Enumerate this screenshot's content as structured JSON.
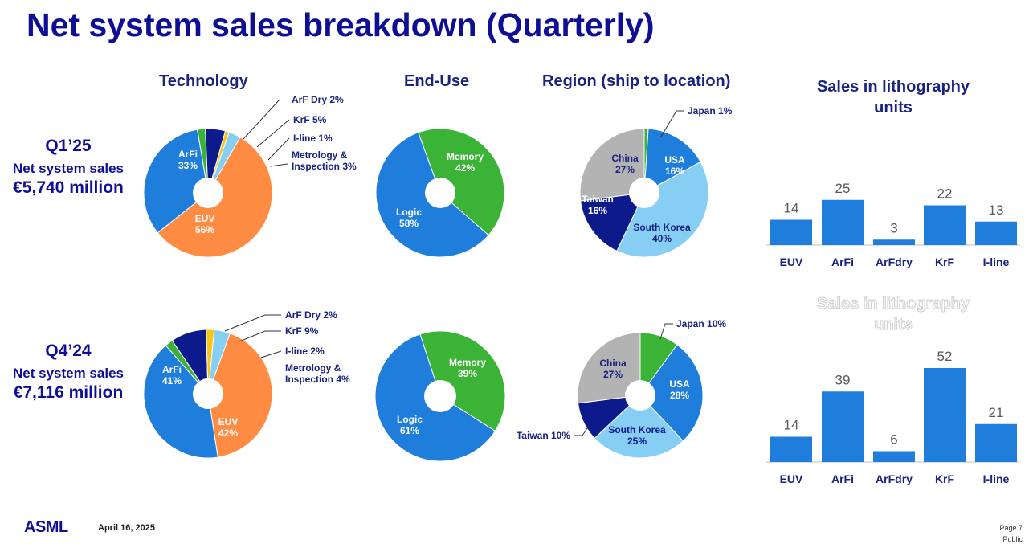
{
  "title": "Net system sales breakdown (Quarterly)",
  "headers": {
    "technology": "Technology",
    "end_use": "End-Use",
    "region": "Region (ship to location)",
    "units_line1": "Sales in lithography",
    "units_line2": "units"
  },
  "quarters": [
    {
      "quarter": "Q1’25",
      "label": "Net system sales",
      "amount": "€5,740 million"
    },
    {
      "quarter": "Q4’24",
      "label": "Net system sales",
      "amount": "€7,116 million"
    }
  ],
  "footer": {
    "logo": "ASML",
    "date": "April 16, 2025",
    "page": "Page 7",
    "classification": "Public"
  },
  "colors": {
    "title": "#0f0f96",
    "euv": "#ff8c42",
    "arfi": "#1f7ddb",
    "arfdry": "#3bb336",
    "krf": "#0d1a8c",
    "iline": "#f5c518",
    "metrology": "#87cef5",
    "memory": "#3bb336",
    "logic": "#1f7ddb",
    "japan": "#3bb336",
    "usa": "#1f7ddb",
    "south_korea": "#87cef5",
    "taiwan": "#0d1a8c",
    "china": "#b3b3b3",
    "bar": "#1f7ddb"
  },
  "chart_data": [
    {
      "type": "pie",
      "title": "Technology",
      "period": "Q1’25",
      "slices": [
        {
          "name": "EUV",
          "value": 56,
          "label": "EUV\n56%",
          "color": "euv"
        },
        {
          "name": "ArFi",
          "value": 33,
          "label": "ArFi\n33%",
          "color": "arfi"
        },
        {
          "name": "ArF Dry",
          "value": 2,
          "label": "ArF Dry 2%",
          "color": "arfdry"
        },
        {
          "name": "KrF",
          "value": 5,
          "label": "KrF 5%",
          "color": "krf"
        },
        {
          "name": "I-line",
          "value": 1,
          "label": "I-line 1%",
          "color": "iline"
        },
        {
          "name": "Metrology & Inspection",
          "value": 3,
          "label": "Metrology &\nInspection 3%",
          "color": "metrology"
        }
      ]
    },
    {
      "type": "pie",
      "title": "End-Use",
      "period": "Q1’25",
      "slices": [
        {
          "name": "Memory",
          "value": 42,
          "label": "Memory\n42%",
          "color": "memory"
        },
        {
          "name": "Logic",
          "value": 58,
          "label": "Logic\n58%",
          "color": "logic"
        }
      ]
    },
    {
      "type": "pie",
      "title": "Region (ship to location)",
      "period": "Q1’25",
      "slices": [
        {
          "name": "Japan",
          "value": 1,
          "label": "Japan 1%",
          "color": "japan"
        },
        {
          "name": "USA",
          "value": 16,
          "label": "USA\n16%",
          "color": "usa"
        },
        {
          "name": "South Korea",
          "value": 40,
          "label": "South Korea\n40%",
          "color": "south_korea"
        },
        {
          "name": "Taiwan",
          "value": 16,
          "label": "Taiwan\n16%",
          "color": "taiwan"
        },
        {
          "name": "China",
          "value": 27,
          "label": "China\n27%",
          "color": "china"
        }
      ]
    },
    {
      "type": "bar",
      "title": "Sales in lithography units",
      "period": "Q1’25",
      "categories": [
        "EUV",
        "ArFi",
        "ArFdry",
        "KrF",
        "I-line"
      ],
      "values": [
        14,
        25,
        3,
        22,
        13
      ]
    },
    {
      "type": "pie",
      "title": "Technology",
      "period": "Q4’24",
      "slices": [
        {
          "name": "EUV",
          "value": 42,
          "label": "EUV\n42%",
          "color": "euv"
        },
        {
          "name": "ArFi",
          "value": 41,
          "label": "ArFi\n41%",
          "color": "arfi"
        },
        {
          "name": "ArF Dry",
          "value": 2,
          "label": "ArF Dry 2%",
          "color": "arfdry"
        },
        {
          "name": "KrF",
          "value": 9,
          "label": "KrF 9%",
          "color": "krf"
        },
        {
          "name": "I-line",
          "value": 2,
          "label": "I-line 2%",
          "color": "iline"
        },
        {
          "name": "Metrology & Inspection",
          "value": 4,
          "label": "Metrology &\nInspection 4%",
          "color": "metrology"
        }
      ]
    },
    {
      "type": "pie",
      "title": "End-Use",
      "period": "Q4’24",
      "slices": [
        {
          "name": "Memory",
          "value": 39,
          "label": "Memory\n39%",
          "color": "memory"
        },
        {
          "name": "Logic",
          "value": 61,
          "label": "Logic\n61%",
          "color": "logic"
        }
      ]
    },
    {
      "type": "pie",
      "title": "Region (ship to location)",
      "period": "Q4’24",
      "slices": [
        {
          "name": "Japan",
          "value": 10,
          "label": "Japan 10%",
          "color": "japan"
        },
        {
          "name": "USA",
          "value": 28,
          "label": "USA\n28%",
          "color": "usa"
        },
        {
          "name": "South Korea",
          "value": 25,
          "label": "South Korea\n25%",
          "color": "south_korea"
        },
        {
          "name": "Taiwan",
          "value": 10,
          "label": "Taiwan 10%",
          "color": "taiwan"
        },
        {
          "name": "China",
          "value": 27,
          "label": "China\n27%",
          "color": "china"
        }
      ]
    },
    {
      "type": "bar",
      "title": "Sales in lithography units",
      "period": "Q4’24",
      "categories": [
        "EUV",
        "ArFi",
        "ArFdry",
        "KrF",
        "I-line"
      ],
      "values": [
        14,
        39,
        6,
        52,
        21
      ]
    }
  ]
}
